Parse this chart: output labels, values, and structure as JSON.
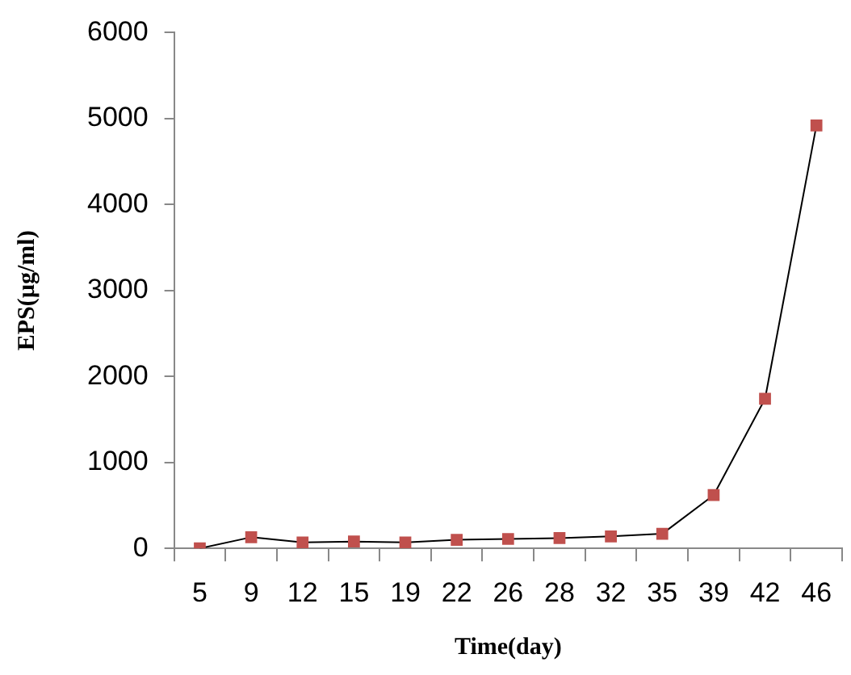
{
  "chart_data": {
    "type": "line",
    "xlabel": "Time(day)",
    "ylabel": "EPS(µg/ml)",
    "categories": [
      "5",
      "9",
      "12",
      "15",
      "19",
      "22",
      "26",
      "28",
      "32",
      "35",
      "39",
      "42",
      "46"
    ],
    "series": [
      {
        "color": "#c0504d",
        "values": [
          0,
          130,
          70,
          80,
          70,
          100,
          110,
          120,
          140,
          170,
          620,
          1740,
          4920
        ]
      }
    ],
    "ylim": [
      0,
      6000
    ],
    "yticks": [
      0,
      1000,
      2000,
      3000,
      4000,
      5000,
      6000
    ],
    "grid": false,
    "legend": false,
    "marker": "square",
    "line_style": "solid"
  }
}
